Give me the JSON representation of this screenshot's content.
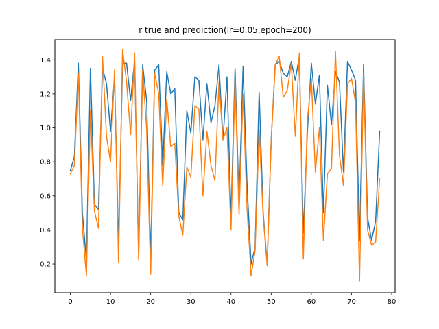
{
  "chart_data": {
    "type": "line",
    "title": "r true and prediction(lr=0.05,epoch=200)",
    "xlabel": "",
    "ylabel": "",
    "xlim": [
      -3.85,
      80.85
    ],
    "ylim": [
      0.031,
      1.518
    ],
    "x_ticks": [
      0,
      10,
      20,
      30,
      40,
      50,
      60,
      70,
      80
    ],
    "y_ticks": [
      0.2,
      0.4,
      0.6,
      0.8,
      1.0,
      1.2,
      1.4
    ],
    "grid": false,
    "legend": "none",
    "series": [
      {
        "color": "#1f77b4",
        "values": [
          0.75,
          0.83,
          1.38,
          0.5,
          0.22,
          1.35,
          0.55,
          0.52,
          1.35,
          1.26,
          0.98,
          1.3,
          0.32,
          1.38,
          1.38,
          1.16,
          1.4,
          0.26,
          1.37,
          1.16,
          0.24,
          1.34,
          1.37,
          0.78,
          1.33,
          1.2,
          1.23,
          0.5,
          0.46,
          1.1,
          0.97,
          1.3,
          1.28,
          0.93,
          1.26,
          1.03,
          1.13,
          1.37,
          0.93,
          1.3,
          0.47,
          1.35,
          0.56,
          1.36,
          0.66,
          0.2,
          0.3,
          1.21,
          0.5,
          0.2,
          0.93,
          1.37,
          1.39,
          1.32,
          1.3,
          1.39,
          1.28,
          1.42,
          0.38,
          0.97,
          1.38,
          1.14,
          1.31,
          0.5,
          1.25,
          1.02,
          1.33,
          1.27,
          0.74,
          1.39,
          1.34,
          1.28,
          0.34,
          1.37,
          0.47,
          0.34,
          0.45,
          0.98
        ]
      },
      {
        "color": "#ff7f0e",
        "values": [
          0.73,
          0.78,
          1.32,
          0.41,
          0.13,
          1.1,
          0.51,
          0.41,
          1.42,
          0.95,
          0.8,
          1.34,
          0.21,
          1.46,
          1.27,
          0.96,
          1.44,
          0.22,
          1.34,
          0.99,
          0.14,
          1.32,
          1.2,
          0.66,
          1.17,
          0.89,
          0.91,
          0.48,
          0.37,
          0.77,
          0.71,
          1.13,
          1.11,
          0.6,
          0.98,
          0.78,
          0.69,
          1.27,
          0.93,
          1.0,
          0.4,
          1.28,
          0.49,
          1.2,
          0.52,
          0.13,
          0.28,
          0.99,
          0.48,
          0.19,
          0.92,
          1.37,
          1.42,
          1.18,
          1.22,
          1.38,
          0.95,
          1.44,
          0.23,
          1.04,
          1.29,
          0.74,
          1.0,
          0.34,
          0.73,
          0.76,
          1.45,
          0.84,
          0.66,
          1.26,
          1.29,
          1.15,
          0.1,
          1.32,
          0.4,
          0.31,
          0.33,
          0.7
        ]
      }
    ]
  }
}
